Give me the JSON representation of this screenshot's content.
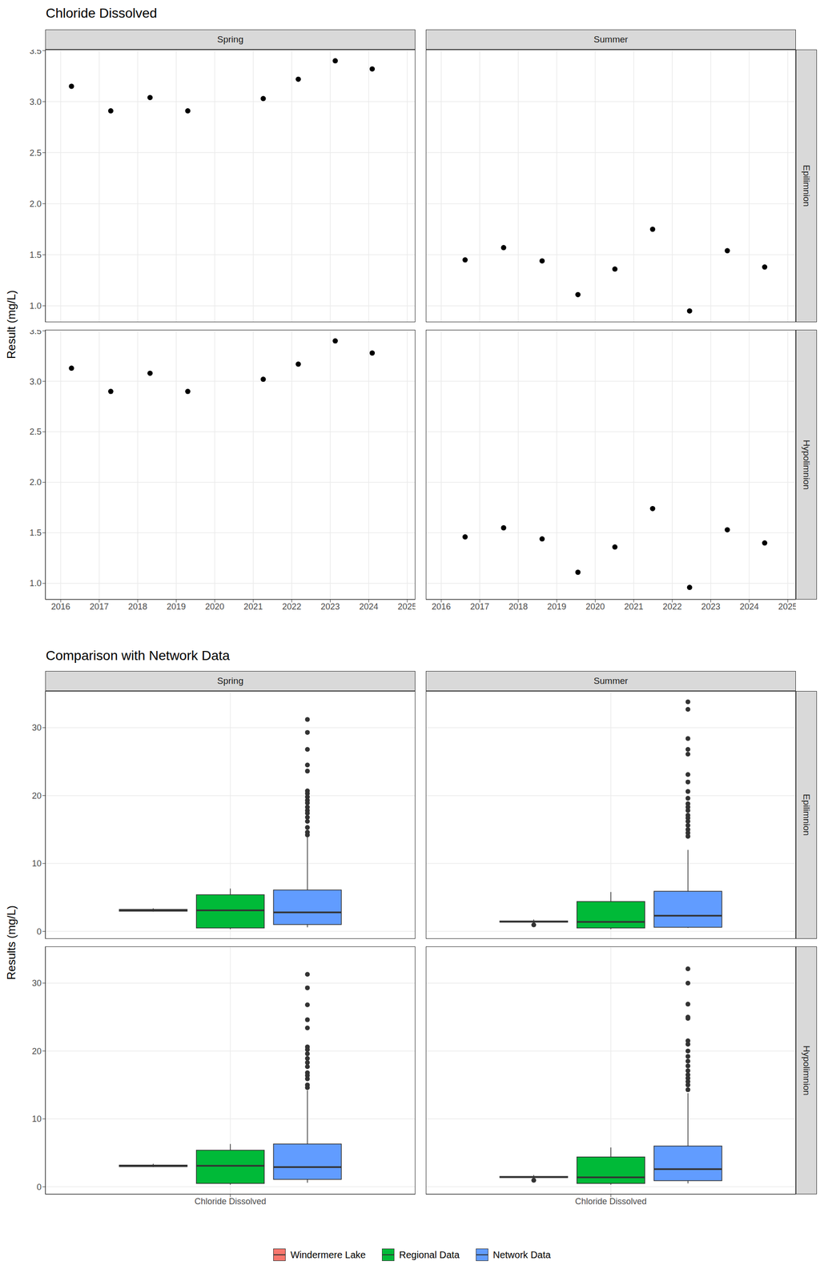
{
  "chart_data": [
    {
      "type": "scatter",
      "title": "Chloride Dissolved",
      "ylabel": "Result (mg/L)",
      "color": "#000000",
      "grid": true,
      "columns": [
        "Spring",
        "Summer"
      ],
      "rows": [
        "Epilimnion",
        "Hypolimnion"
      ],
      "xlim": [
        2015.6,
        2025.21
      ],
      "xticks": [
        2016,
        2017,
        2018,
        2019,
        2020,
        2021,
        2022,
        2023,
        2024,
        2025
      ],
      "ylim": [
        0.84,
        3.51
      ],
      "yticks": [
        {
          "value": 1,
          "label": "1.0"
        },
        1.5,
        {
          "value": 2,
          "label": "2.0"
        },
        2.5,
        {
          "value": 3,
          "label": "3.0"
        },
        3.5
      ],
      "panels": [
        {
          "column": "Spring",
          "row": "Epilimnion",
          "x": [
            2016.28,
            2017.3,
            2018.32,
            2019.3,
            2021.26,
            2022.17,
            2023.13,
            2024.09
          ],
          "values": [
            3.15,
            2.91,
            3.04,
            2.91,
            3.03,
            3.22,
            3.4,
            3.32
          ]
        },
        {
          "column": "Summer",
          "row": "Epilimnion",
          "x": [
            2016.62,
            2017.62,
            2018.62,
            2019.55,
            2020.51,
            2021.49,
            2022.45,
            2023.43,
            2024.4
          ],
          "values": [
            1.45,
            1.57,
            1.44,
            1.11,
            1.36,
            1.75,
            0.95,
            1.54,
            1.38
          ]
        },
        {
          "column": "Spring",
          "row": "Hypolimnion",
          "x": [
            2016.28,
            2017.3,
            2018.32,
            2019.3,
            2021.26,
            2022.17,
            2023.13,
            2024.09
          ],
          "values": [
            3.13,
            2.9,
            3.08,
            2.9,
            3.02,
            3.17,
            3.4,
            3.28
          ]
        },
        {
          "column": "Summer",
          "row": "Hypolimnion",
          "x": [
            2016.62,
            2017.62,
            2018.62,
            2019.55,
            2020.51,
            2021.49,
            2022.45,
            2023.43,
            2024.4
          ],
          "values": [
            1.46,
            1.55,
            1.44,
            1.11,
            1.36,
            1.74,
            0.96,
            1.53,
            1.4
          ]
        }
      ]
    },
    {
      "type": "box",
      "title": "Comparison with Network Data",
      "ylabel": "Results (mg/L)",
      "grid": true,
      "legend": "bottom",
      "columns": [
        "Spring",
        "Summer"
      ],
      "rows": [
        "Epilimnion",
        "Hypolimnion"
      ],
      "categories": [
        "Chloride Dissolved"
      ],
      "ylim": [
        -1.1,
        35.4
      ],
      "yticks": [
        0,
        10,
        20,
        30
      ],
      "series": [
        {
          "name": "Windermere Lake",
          "color": "#F8766D"
        },
        {
          "name": "Regional Data",
          "color": "#00BA38"
        },
        {
          "name": "Network Data",
          "color": "#619CFF"
        }
      ],
      "panels": [
        {
          "column": "Spring",
          "row": "Epilimnion",
          "boxes": [
            {
              "low": 2.91,
              "q1": 2.97,
              "median": 3.09,
              "q3": 3.24,
              "high": 3.4,
              "outliers": []
            },
            {
              "low": 0.3,
              "q1": 0.5,
              "median": 3.1,
              "q3": 5.4,
              "high": 6.3,
              "outliers": []
            },
            {
              "low": 0.6,
              "q1": 1.0,
              "median": 2.8,
              "q3": 6.1,
              "high": 13.9,
              "outliers": [
                31.2,
                29.3,
                26.8,
                24.5,
                23.6,
                20.7,
                20.3,
                19.8,
                19.3,
                18.9,
                18.3,
                17.8,
                17.4,
                16.8,
                16.2,
                15.3,
                14.6,
                14.2
              ]
            }
          ]
        },
        {
          "column": "Summer",
          "row": "Epilimnion",
          "boxes": [
            {
              "low": 1.11,
              "q1": 1.36,
              "median": 1.44,
              "q3": 1.54,
              "high": 1.75,
              "outliers": [
                0.95
              ]
            },
            {
              "low": 0.3,
              "q1": 0.5,
              "median": 1.4,
              "q3": 4.4,
              "high": 5.8,
              "outliers": []
            },
            {
              "low": 0.5,
              "q1": 0.6,
              "median": 2.3,
              "q3": 5.9,
              "high": 12.0,
              "outliers": [
                33.8,
                32.7,
                28.4,
                26.8,
                26.1,
                23.1,
                22.0,
                20.6,
                19.6,
                18.8,
                18.3,
                17.8,
                17.1,
                16.7,
                16.2,
                15.6,
                15.0,
                14.5,
                14.0
              ]
            }
          ]
        },
        {
          "column": "Spring",
          "row": "Hypolimnion",
          "boxes": [
            {
              "low": 2.9,
              "q1": 2.97,
              "median": 3.1,
              "q3": 3.2,
              "high": 3.4,
              "outliers": []
            },
            {
              "low": 0.3,
              "q1": 0.5,
              "median": 3.1,
              "q3": 5.4,
              "high": 6.3,
              "outliers": []
            },
            {
              "low": 0.6,
              "q1": 1.1,
              "median": 2.9,
              "q3": 6.3,
              "high": 14.2,
              "outliers": [
                31.3,
                29.3,
                26.8,
                24.6,
                23.4,
                20.6,
                20.2,
                19.6,
                18.9,
                18.3,
                17.7,
                16.8,
                16.4,
                15.9,
                15.0,
                14.6
              ]
            }
          ]
        },
        {
          "column": "Summer",
          "row": "Hypolimnion",
          "boxes": [
            {
              "low": 1.11,
              "q1": 1.36,
              "median": 1.44,
              "q3": 1.53,
              "high": 1.74,
              "outliers": [
                0.96
              ]
            },
            {
              "low": 0.3,
              "q1": 0.5,
              "median": 1.4,
              "q3": 4.4,
              "high": 5.8,
              "outliers": []
            },
            {
              "low": 0.5,
              "q1": 0.9,
              "median": 2.6,
              "q3": 6.0,
              "high": 13.8,
              "outliers": [
                32.1,
                30.0,
                26.9,
                25.0,
                24.8,
                21.5,
                21.0,
                20.0,
                19.2,
                18.5,
                17.8,
                17.1,
                16.5,
                16.0,
                15.5,
                15.0,
                14.3
              ]
            }
          ]
        }
      ]
    }
  ]
}
